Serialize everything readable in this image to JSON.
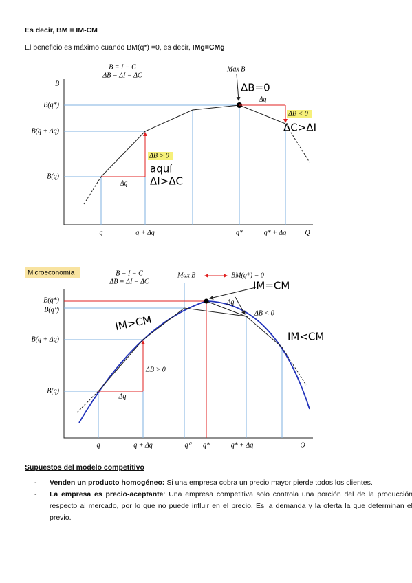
{
  "heading": "Es decir, BM = IM-CM",
  "intro": {
    "text": "El beneficio es máximo cuando BM(q*) =0, es decir, ",
    "bold": "IMg=CMg"
  },
  "diagram1": {
    "formula1": "B = I − C",
    "formula2": "ΔB = ΔI − ΔC",
    "y_axis": "B",
    "max": "Max B",
    "y_labels": [
      "B(q*)",
      "B(q + Δq)",
      "B(q)"
    ],
    "x_labels": [
      "q",
      "q + Δq",
      "q*",
      "q* + Δq",
      "Q"
    ],
    "dq_left": "Δq",
    "dq_right": "Δq",
    "db_pos": "ΔB > 0",
    "db_neg": "ΔB < 0",
    "hand_db0": "ΔB=0",
    "hand_aqui": "aquí",
    "hand_di": "ΔI>ΔC",
    "hand_dc": "ΔC>ΔI"
  },
  "diagram2": {
    "tag": "Microeconomía",
    "formula1": "B = I − C",
    "formula2": "ΔB = ΔI − ΔC",
    "max": "Max B",
    "bm": "BM(q*) = 0",
    "y_labels": [
      "B(q*)",
      "B(q⁰)",
      "B(q + Δq)",
      "B(q)"
    ],
    "x_labels": [
      "q",
      "q + Δq",
      "q⁰",
      "q*",
      "q* + Δq",
      "Q"
    ],
    "dq_left": "Δq",
    "dq_right": "Δq",
    "db_pos": "ΔB > 0",
    "db_neg": "ΔB < 0",
    "hand_eq": "IM=CM",
    "hand_gt": "IM>CM",
    "hand_lt": "IM<CM"
  },
  "section": {
    "title": "Supuestos del modelo competitivo",
    "items": [
      {
        "bold": "Venden un producto homogéneo:",
        "text": " Si una empresa cobra un precio mayor pierde todos los clientes."
      },
      {
        "bold": "La empresa es precio-aceptante",
        "text": ": Una empresa competitiva solo controla una porción del de la producción respecto al mercado, por lo que no puede influir en el precio.  Es la demanda y la oferta la que determinan el previo."
      }
    ]
  }
}
